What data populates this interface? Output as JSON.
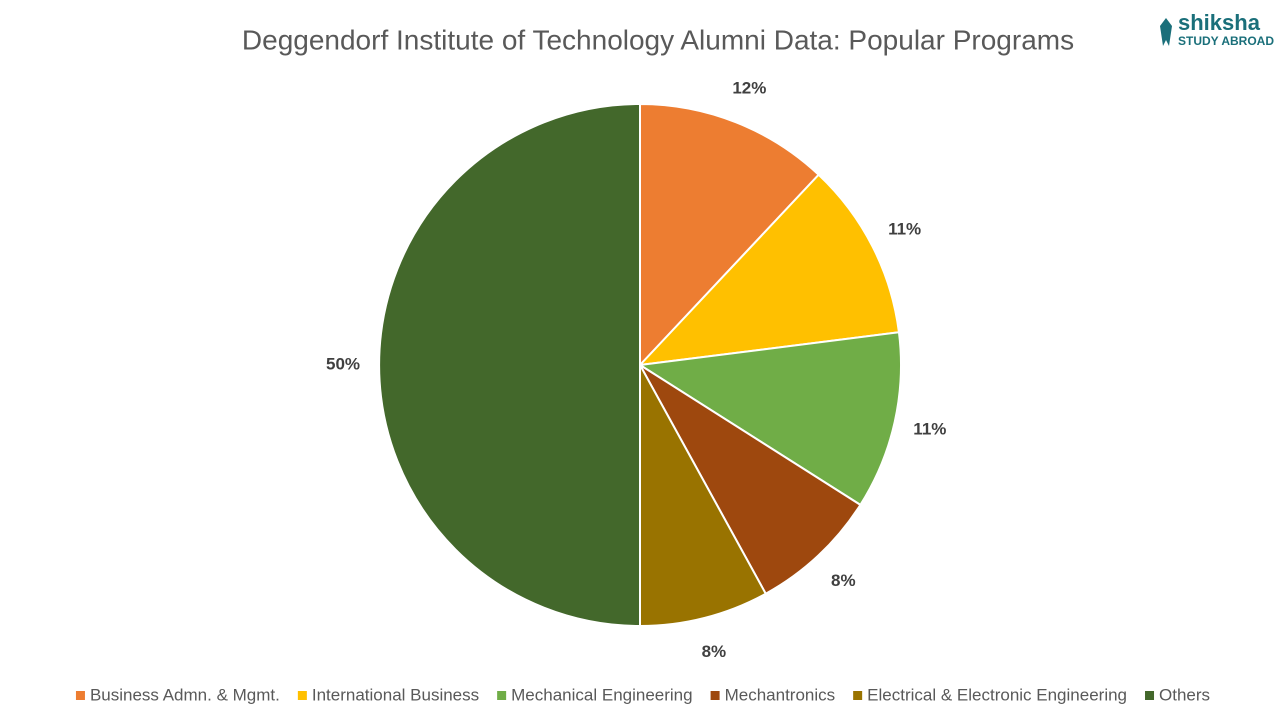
{
  "chart_data": {
    "type": "pie",
    "title": "Deggendorf Institute of Technology Alumni Data: Popular Programs",
    "categories": [
      "Business Admn. & Mgmt.",
      "International Business",
      "Mechanical Engineering",
      "Mechantronics",
      "Electrical & Electronic Engineering",
      "Others"
    ],
    "values": [
      12,
      11,
      11,
      8,
      8,
      50
    ],
    "value_labels": [
      "12%",
      "11%",
      "11%",
      "8%",
      "8%",
      "50%"
    ],
    "colors": [
      "#ed7d31",
      "#ffc000",
      "#70ad47",
      "#9e480e",
      "#997300",
      "#43682b"
    ],
    "legend": "bottom"
  },
  "logo": {
    "name": "shiksha",
    "tagline": "STUDY ABROAD"
  }
}
